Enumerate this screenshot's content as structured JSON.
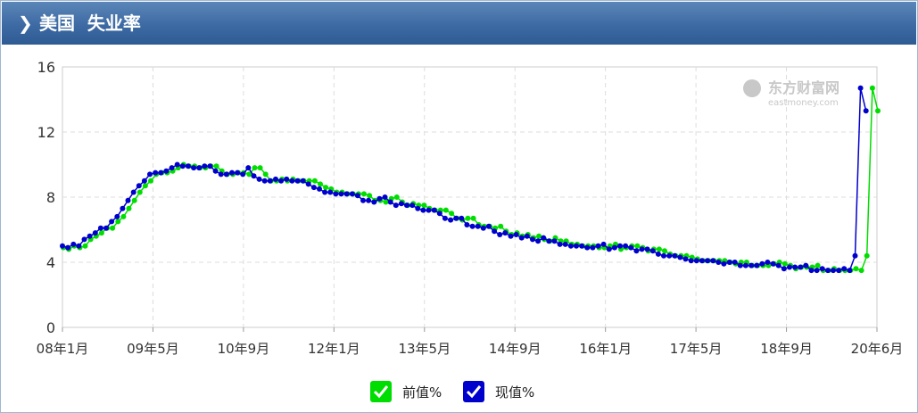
{
  "header": {
    "title": "美国  失业率"
  },
  "legend": [
    {
      "label": "前值%",
      "color": "#00dd00"
    },
    {
      "label": "现值%",
      "color": "#0000cc"
    }
  ],
  "watermark": {
    "brand": "东方财富网",
    "url": "eastmoney.com"
  },
  "chart_data": {
    "type": "line",
    "title": "美国  失业率",
    "ylim": [
      0,
      16
    ],
    "yticks": [
      0,
      4,
      8,
      12,
      16
    ],
    "xtick_labels": [
      "08年1月",
      "09年5月",
      "10年9月",
      "12年1月",
      "13年5月",
      "14年9月",
      "16年1月",
      "17年5月",
      "18年9月",
      "20年6月"
    ],
    "grid": true,
    "legend_position": "bottom",
    "x_start": "2008-01",
    "x_end": "2020-06",
    "series": [
      {
        "name": "前值%",
        "color": "#00dd00",
        "values": [
          4.9,
          4.8,
          5.0,
          4.9,
          5.0,
          5.4,
          5.6,
          5.8,
          6.1,
          6.1,
          6.5,
          6.8,
          7.3,
          7.8,
          8.3,
          8.7,
          9.0,
          9.4,
          9.5,
          9.5,
          9.6,
          9.8,
          10.0,
          9.9,
          9.9,
          9.8,
          9.8,
          9.9,
          9.9,
          9.6,
          9.4,
          9.4,
          9.5,
          9.5,
          9.4,
          9.8,
          9.8,
          9.4,
          9.0,
          9.0,
          9.1,
          9.0,
          9.1,
          9.0,
          9.0,
          9.0,
          9.0,
          8.8,
          8.6,
          8.5,
          8.3,
          8.3,
          8.2,
          8.2,
          8.2,
          8.2,
          8.1,
          7.8,
          7.8,
          7.7,
          7.9,
          8.0,
          7.7,
          7.5,
          7.6,
          7.5,
          7.5,
          7.3,
          7.2,
          7.2,
          7.2,
          7.0,
          6.7,
          6.6,
          6.7,
          6.7,
          6.3,
          6.2,
          6.2,
          6.1,
          6.2,
          5.9,
          5.7,
          5.8,
          5.6,
          5.7,
          5.5,
          5.6,
          5.4,
          5.3,
          5.5,
          5.3,
          5.3,
          5.1,
          5.1,
          5.0,
          5.0,
          5.0,
          4.9,
          4.9,
          5.0,
          5.1,
          4.8,
          4.9,
          5.0,
          5.0,
          4.9,
          4.7,
          4.8,
          4.8,
          4.7,
          4.5,
          4.4,
          4.4,
          4.4,
          4.3,
          4.2,
          4.1,
          4.1,
          4.1,
          4.1,
          4.1,
          4.0,
          3.9,
          4.0,
          4.0,
          3.8,
          3.8,
          3.8,
          3.8,
          3.9,
          4.0,
          3.9,
          3.8,
          3.6,
          3.7,
          3.7,
          3.7,
          3.8,
          3.5,
          3.5,
          3.6,
          3.5,
          3.5,
          3.5,
          3.6,
          3.5,
          4.4,
          14.7,
          13.3
        ]
      },
      {
        "name": "现值%",
        "color": "#0000cc",
        "values": [
          5.0,
          4.9,
          5.1,
          5.0,
          5.4,
          5.6,
          5.8,
          6.1,
          6.1,
          6.5,
          6.8,
          7.3,
          7.8,
          8.3,
          8.7,
          9.0,
          9.4,
          9.5,
          9.5,
          9.6,
          9.8,
          10.0,
          9.9,
          9.9,
          9.8,
          9.8,
          9.9,
          9.9,
          9.6,
          9.4,
          9.4,
          9.5,
          9.5,
          9.4,
          9.8,
          9.3,
          9.1,
          9.0,
          9.0,
          9.1,
          9.0,
          9.1,
          9.0,
          9.0,
          9.0,
          8.8,
          8.6,
          8.5,
          8.3,
          8.3,
          8.2,
          8.2,
          8.2,
          8.2,
          8.1,
          7.8,
          7.8,
          7.7,
          7.9,
          8.0,
          7.7,
          7.5,
          7.6,
          7.5,
          7.5,
          7.3,
          7.2,
          7.2,
          7.2,
          7.0,
          6.7,
          6.6,
          6.7,
          6.7,
          6.3,
          6.2,
          6.2,
          6.1,
          6.2,
          5.9,
          5.7,
          5.8,
          5.6,
          5.7,
          5.5,
          5.6,
          5.4,
          5.3,
          5.5,
          5.3,
          5.3,
          5.1,
          5.1,
          5.0,
          5.0,
          5.0,
          4.9,
          4.9,
          5.0,
          5.1,
          4.8,
          4.9,
          5.0,
          5.0,
          4.9,
          4.7,
          4.8,
          4.8,
          4.7,
          4.5,
          4.4,
          4.4,
          4.4,
          4.3,
          4.2,
          4.1,
          4.1,
          4.1,
          4.1,
          4.1,
          4.0,
          3.9,
          4.0,
          4.0,
          3.8,
          3.8,
          3.8,
          3.8,
          3.9,
          4.0,
          3.9,
          3.8,
          3.6,
          3.7,
          3.7,
          3.7,
          3.8,
          3.5,
          3.5,
          3.6,
          3.5,
          3.5,
          3.5,
          3.6,
          3.5,
          4.4,
          14.7,
          13.3
        ]
      }
    ]
  }
}
